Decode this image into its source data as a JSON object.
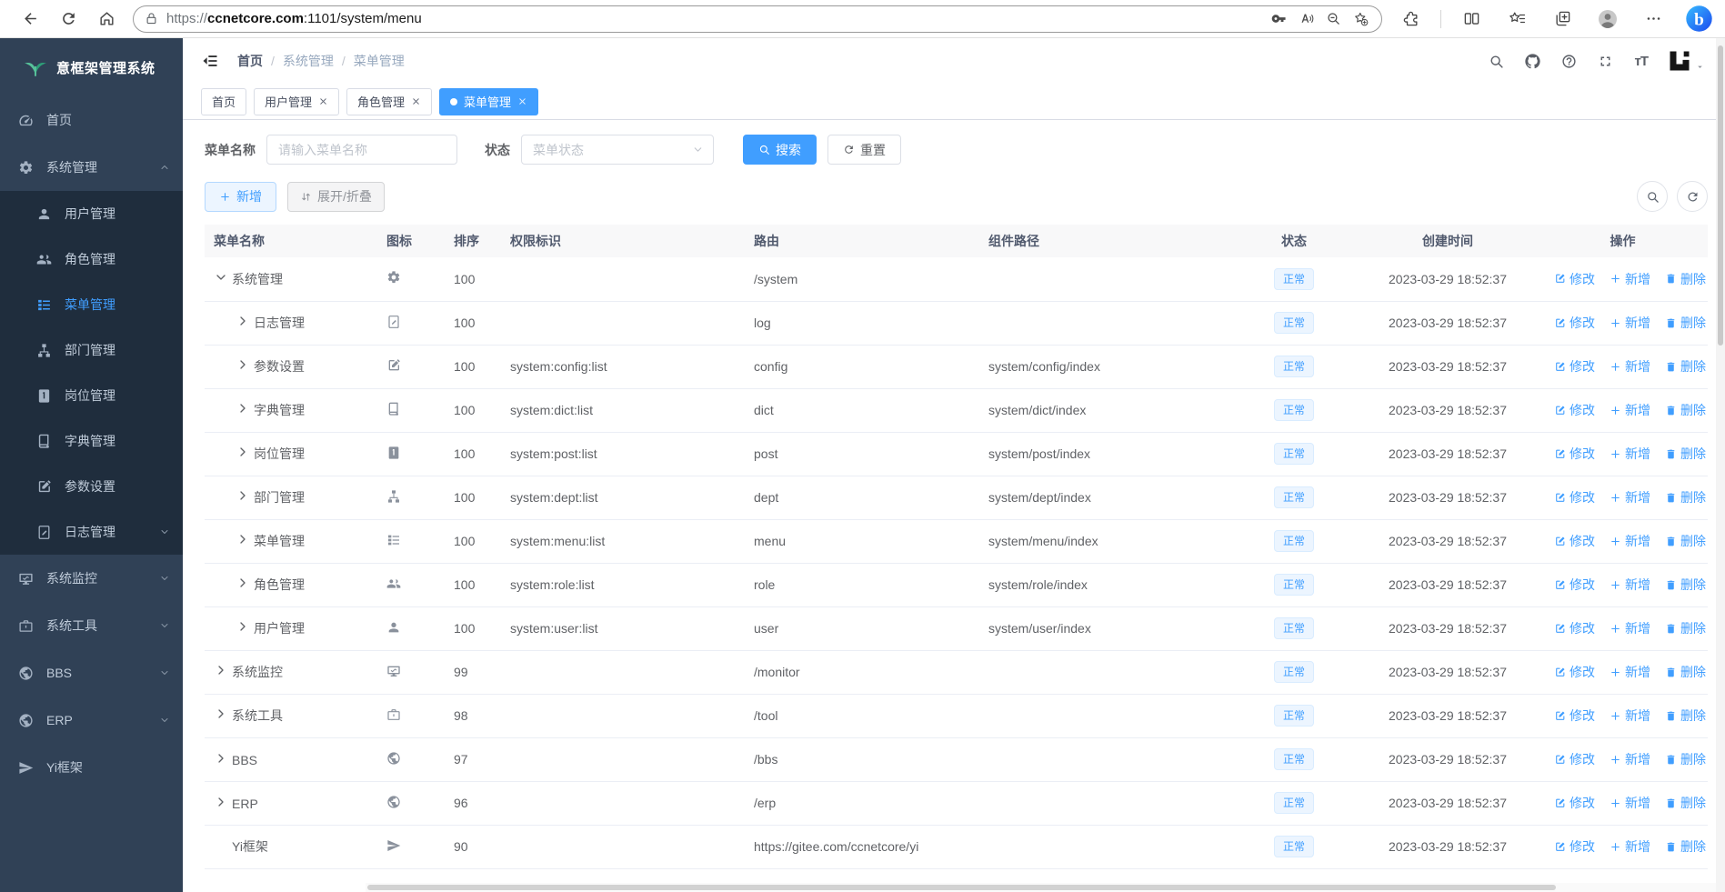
{
  "colors": {
    "accent": "#409eff",
    "sidebar_bg": "#304156",
    "submenu_bg": "#1f2d3d",
    "badge_bg": "#ecf5ff",
    "badge_border": "#d9ecff",
    "badge_text": "#409eff"
  },
  "browser": {
    "url": {
      "scheme": "https://",
      "host": "ccnetcore.com",
      "path": ":1101/system/menu"
    },
    "left_icons": [
      {
        "id": "back",
        "icon": "back-icon"
      },
      {
        "id": "refresh",
        "icon": "refresh-icon"
      },
      {
        "id": "home",
        "icon": "home-icon"
      }
    ],
    "pill_icons": [
      {
        "id": "password",
        "icon": "key-icon"
      },
      {
        "id": "read-aloud",
        "icon": "read-aloud-icon"
      },
      {
        "id": "zoom-out",
        "icon": "zoom-out-icon"
      },
      {
        "id": "favorite-add",
        "icon": "star-add-icon"
      }
    ],
    "right_icons_a": [
      {
        "id": "extensions",
        "icon": "extensions-icon"
      }
    ],
    "right_icons_b": [
      {
        "id": "split-screen",
        "icon": "split-icon"
      },
      {
        "id": "favorites",
        "icon": "fav-list-icon"
      },
      {
        "id": "collections",
        "icon": "collections-icon"
      },
      {
        "id": "profile",
        "icon": "avatar-icon"
      },
      {
        "id": "more",
        "icon": "more-icon"
      },
      {
        "id": "bing",
        "icon": "bing-icon"
      }
    ]
  },
  "sidebar": {
    "title": "意框架管理系统",
    "logo_icon": "sprout-icon",
    "items": [
      {
        "id": "home",
        "label": "首页",
        "icon": "dashboard-icon"
      },
      {
        "id": "system",
        "label": "系统管理",
        "icon": "gear-icon",
        "open": true,
        "children": [
          {
            "id": "user",
            "label": "用户管理",
            "icon": "user-icon"
          },
          {
            "id": "role",
            "label": "角色管理",
            "icon": "users-icon"
          },
          {
            "id": "menu",
            "label": "菜单管理",
            "icon": "menu-icon",
            "active": true
          },
          {
            "id": "dept",
            "label": "部门管理",
            "icon": "dept-icon"
          },
          {
            "id": "post",
            "label": "岗位管理",
            "icon": "post-icon"
          },
          {
            "id": "dict",
            "label": "字典管理",
            "icon": "dict-icon"
          },
          {
            "id": "config",
            "label": "参数设置",
            "icon": "edit-square-icon"
          },
          {
            "id": "log",
            "label": "日志管理",
            "icon": "log-icon",
            "arrow": "down"
          }
        ]
      },
      {
        "id": "monitor",
        "label": "系统监控",
        "icon": "monitor-icon",
        "arrow": "down"
      },
      {
        "id": "tool",
        "label": "系统工具",
        "icon": "tool-icon",
        "arrow": "down"
      },
      {
        "id": "bbs",
        "label": "BBS",
        "icon": "globe-icon",
        "arrow": "down"
      },
      {
        "id": "erp",
        "label": "ERP",
        "icon": "globe-icon",
        "arrow": "down"
      },
      {
        "id": "yi",
        "label": "Yi框架",
        "icon": "send-icon"
      }
    ]
  },
  "navbar": {
    "breadcrumb": [
      "首页",
      "系统管理",
      "菜单管理"
    ],
    "breadcrumb_separator": "/",
    "icons": [
      {
        "id": "search",
        "icon": "search-icon"
      },
      {
        "id": "github",
        "icon": "github-icon"
      },
      {
        "id": "help",
        "icon": "question-icon"
      },
      {
        "id": "fullscreen",
        "icon": "fullscreen-icon"
      },
      {
        "id": "font-size",
        "icon": "font-size-icon"
      }
    ],
    "font_size_text": "тT",
    "logo_icon": "yi-logo-icon"
  },
  "tabs": [
    {
      "label": "首页",
      "closable": false,
      "active": false
    },
    {
      "label": "用户管理",
      "closable": true,
      "active": false
    },
    {
      "label": "角色管理",
      "closable": true,
      "active": false
    },
    {
      "label": "菜单管理",
      "closable": true,
      "active": true
    }
  ],
  "filters": {
    "name_label": "菜单名称",
    "name_placeholder": "请输入菜单名称",
    "name_value": "",
    "status_label": "状态",
    "status_placeholder": "菜单状态",
    "search_label": "搜索",
    "reset_label": "重置"
  },
  "toolbar": {
    "add_label": "新增",
    "expand_label": "展开/折叠"
  },
  "table": {
    "columns": [
      {
        "key": "name",
        "label": "菜单名称"
      },
      {
        "key": "icon",
        "label": "图标"
      },
      {
        "key": "sort",
        "label": "排序"
      },
      {
        "key": "perm",
        "label": "权限标识"
      },
      {
        "key": "route",
        "label": "路由"
      },
      {
        "key": "comp",
        "label": "组件路径"
      },
      {
        "key": "status",
        "label": "状态"
      },
      {
        "key": "time",
        "label": "创建时间"
      },
      {
        "key": "actions",
        "label": "操作"
      }
    ],
    "actions": [
      {
        "id": "edit",
        "label": "修改",
        "icon": "edit-icon"
      },
      {
        "id": "add",
        "label": "新增",
        "icon": "plus-icon"
      },
      {
        "id": "delete",
        "label": "删除",
        "icon": "trash-icon"
      }
    ],
    "rows": [
      {
        "indent": 0,
        "expand": "down",
        "icon": "gear-icon",
        "name": "系统管理",
        "sort": "100",
        "perm": "",
        "route": "/system",
        "comp": "",
        "status": "正常",
        "time": "2023-03-29 18:52:37"
      },
      {
        "indent": 1,
        "expand": "right",
        "icon": "log-icon",
        "name": "日志管理",
        "sort": "100",
        "perm": "",
        "route": "log",
        "comp": "",
        "status": "正常",
        "time": "2023-03-29 18:52:37"
      },
      {
        "indent": 1,
        "expand": "right",
        "icon": "edit-square-icon",
        "name": "参数设置",
        "sort": "100",
        "perm": "system:config:list",
        "route": "config",
        "comp": "system/config/index",
        "status": "正常",
        "time": "2023-03-29 18:52:37"
      },
      {
        "indent": 1,
        "expand": "right",
        "icon": "dict-icon",
        "name": "字典管理",
        "sort": "100",
        "perm": "system:dict:list",
        "route": "dict",
        "comp": "system/dict/index",
        "status": "正常",
        "time": "2023-03-29 18:52:37"
      },
      {
        "indent": 1,
        "expand": "right",
        "icon": "post-icon",
        "name": "岗位管理",
        "sort": "100",
        "perm": "system:post:list",
        "route": "post",
        "comp": "system/post/index",
        "status": "正常",
        "time": "2023-03-29 18:52:37"
      },
      {
        "indent": 1,
        "expand": "right",
        "icon": "dept-icon",
        "name": "部门管理",
        "sort": "100",
        "perm": "system:dept:list",
        "route": "dept",
        "comp": "system/dept/index",
        "status": "正常",
        "time": "2023-03-29 18:52:37"
      },
      {
        "indent": 1,
        "expand": "right",
        "icon": "menu-icon",
        "name": "菜单管理",
        "sort": "100",
        "perm": "system:menu:list",
        "route": "menu",
        "comp": "system/menu/index",
        "status": "正常",
        "time": "2023-03-29 18:52:37"
      },
      {
        "indent": 1,
        "expand": "right",
        "icon": "users-icon",
        "name": "角色管理",
        "sort": "100",
        "perm": "system:role:list",
        "route": "role",
        "comp": "system/role/index",
        "status": "正常",
        "time": "2023-03-29 18:52:37"
      },
      {
        "indent": 1,
        "expand": "right",
        "icon": "user-icon",
        "name": "用户管理",
        "sort": "100",
        "perm": "system:user:list",
        "route": "user",
        "comp": "system/user/index",
        "status": "正常",
        "time": "2023-03-29 18:52:37"
      },
      {
        "indent": 0,
        "expand": "right",
        "icon": "monitor-icon",
        "name": "系统监控",
        "sort": "99",
        "perm": "",
        "route": "/monitor",
        "comp": "",
        "status": "正常",
        "time": "2023-03-29 18:52:37"
      },
      {
        "indent": 0,
        "expand": "right",
        "icon": "tool-icon",
        "name": "系统工具",
        "sort": "98",
        "perm": "",
        "route": "/tool",
        "comp": "",
        "status": "正常",
        "time": "2023-03-29 18:52:37"
      },
      {
        "indent": 0,
        "expand": "right",
        "icon": "globe-icon",
        "name": "BBS",
        "sort": "97",
        "perm": "",
        "route": "/bbs",
        "comp": "",
        "status": "正常",
        "time": "2023-03-29 18:52:37"
      },
      {
        "indent": 0,
        "expand": "right",
        "icon": "globe-icon",
        "name": "ERP",
        "sort": "96",
        "perm": "",
        "route": "/erp",
        "comp": "",
        "status": "正常",
        "time": "2023-03-29 18:52:37"
      },
      {
        "indent": 0,
        "expand": "none",
        "icon": "send-icon",
        "name": "Yi框架",
        "sort": "90",
        "perm": "",
        "route": "https://gitee.com/ccnetcore/yi",
        "comp": "",
        "status": "正常",
        "time": "2023-03-29 18:52:37"
      }
    ]
  }
}
